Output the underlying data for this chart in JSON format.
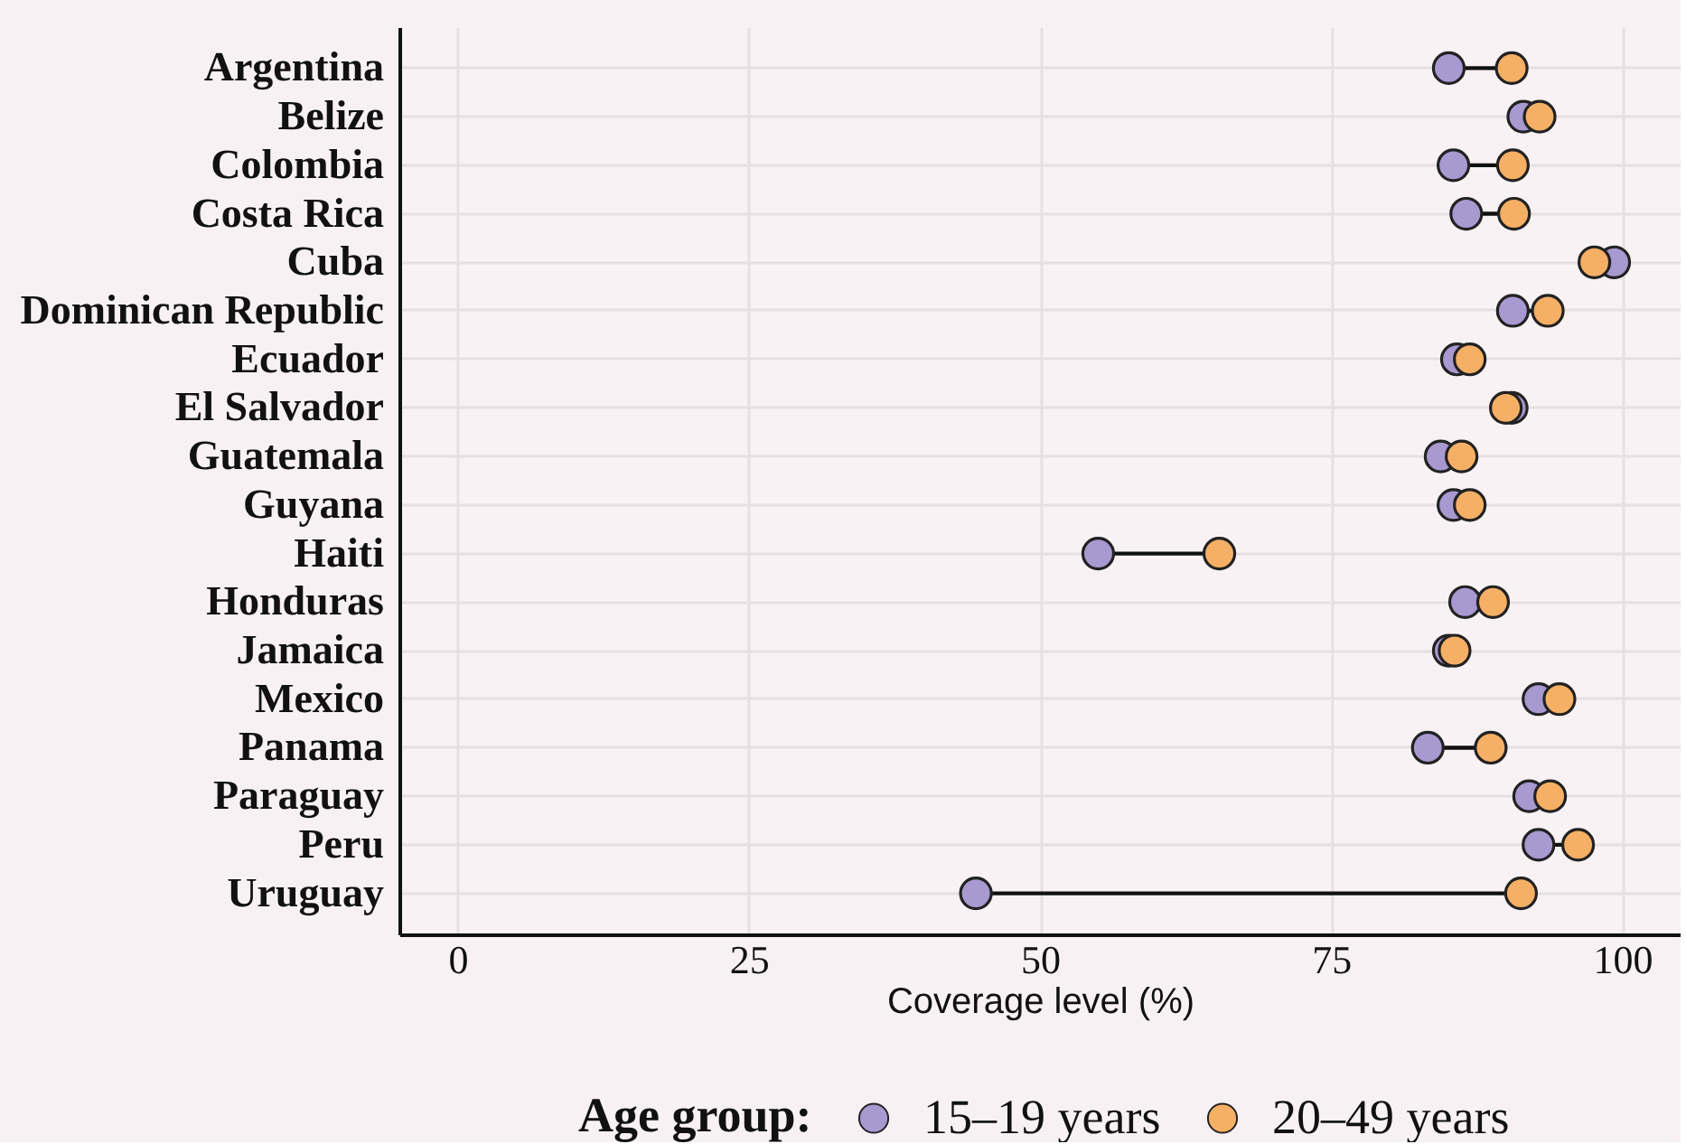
{
  "chart_data": {
    "type": "scatter",
    "orientation": "horizontal",
    "categories": [
      "Argentina",
      "Belize",
      "Colombia",
      "Costa Rica",
      "Cuba",
      "Dominican Republic",
      "Ecuador",
      "El Salvador",
      "Guatemala",
      "Guyana",
      "Haiti",
      "Honduras",
      "Jamaica",
      "Mexico",
      "Panama",
      "Paraguay",
      "Peru",
      "Uruguay"
    ],
    "xlabel": "Coverage level (%)",
    "legend_title": "Age group:",
    "xlim": [
      -5,
      105
    ],
    "xticks": [
      0,
      25,
      50,
      75,
      100
    ],
    "grid": true,
    "legend": "bottom",
    "marker": "circle",
    "series": [
      {
        "name": "15–19 years",
        "color": "#a899d1",
        "values": [
          85.1,
          91.5,
          85.5,
          86.6,
          99.3,
          90.6,
          85.8,
          90.5,
          84.4,
          85.5,
          55.0,
          86.5,
          85.1,
          92.8,
          83.3,
          92.0,
          92.8,
          44.5
        ]
      },
      {
        "name": "20–49 years",
        "color": "#f6b065",
        "values": [
          90.5,
          92.9,
          90.6,
          90.7,
          97.6,
          93.6,
          86.9,
          90.0,
          86.2,
          86.9,
          65.4,
          88.9,
          85.6,
          94.6,
          88.7,
          93.8,
          96.2,
          91.3
        ]
      }
    ]
  }
}
